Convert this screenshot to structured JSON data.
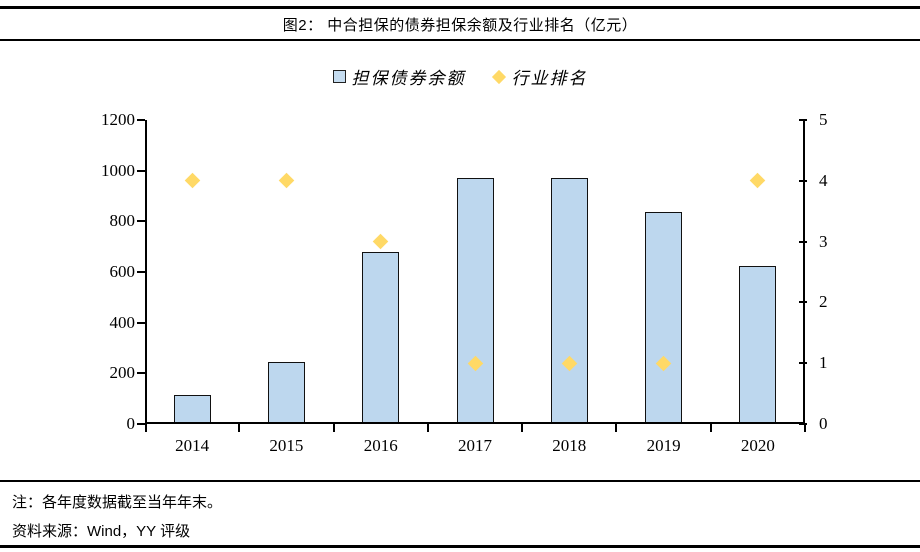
{
  "title": {
    "text": "图2：  中合担保的债券担保余额及行业排名（亿元）"
  },
  "legend": [
    {
      "label": "担保债券余额",
      "marker": "square",
      "color": "#C5DCF0",
      "border": "#222222"
    },
    {
      "label": "行业排名",
      "marker": "diamond",
      "color": "#FFD966"
    }
  ],
  "notes": {
    "note": "注：各年度数据截至当年年末。",
    "source": "资料来源：Wind，YY 评级"
  },
  "chart_data": {
    "type": "bar",
    "categories": [
      "2014",
      "2015",
      "2016",
      "2017",
      "2018",
      "2019",
      "2020"
    ],
    "series": [
      {
        "name": "担保债券余额",
        "type": "bar",
        "axis": "left",
        "values": [
          105,
          237,
          670,
          965,
          963,
          830,
          616
        ],
        "color": "#BDD7EE",
        "border_color": "#111111"
      },
      {
        "name": "行业排名",
        "type": "scatter",
        "axis": "right",
        "values": [
          4,
          4,
          3,
          1,
          1,
          1,
          4
        ],
        "marker": "diamond",
        "color": "#FFD966"
      }
    ],
    "left_axis": {
      "label": "",
      "min": 0,
      "max": 1200,
      "step": 200,
      "ticks": [
        "0",
        "200",
        "400",
        "600",
        "800",
        "1000",
        "1200"
      ]
    },
    "right_axis": {
      "label": "",
      "min": 0,
      "max": 5,
      "step": 1,
      "ticks": [
        "0",
        "1",
        "2",
        "3",
        "4",
        "5"
      ]
    },
    "grid": false,
    "legend_position": "top"
  }
}
